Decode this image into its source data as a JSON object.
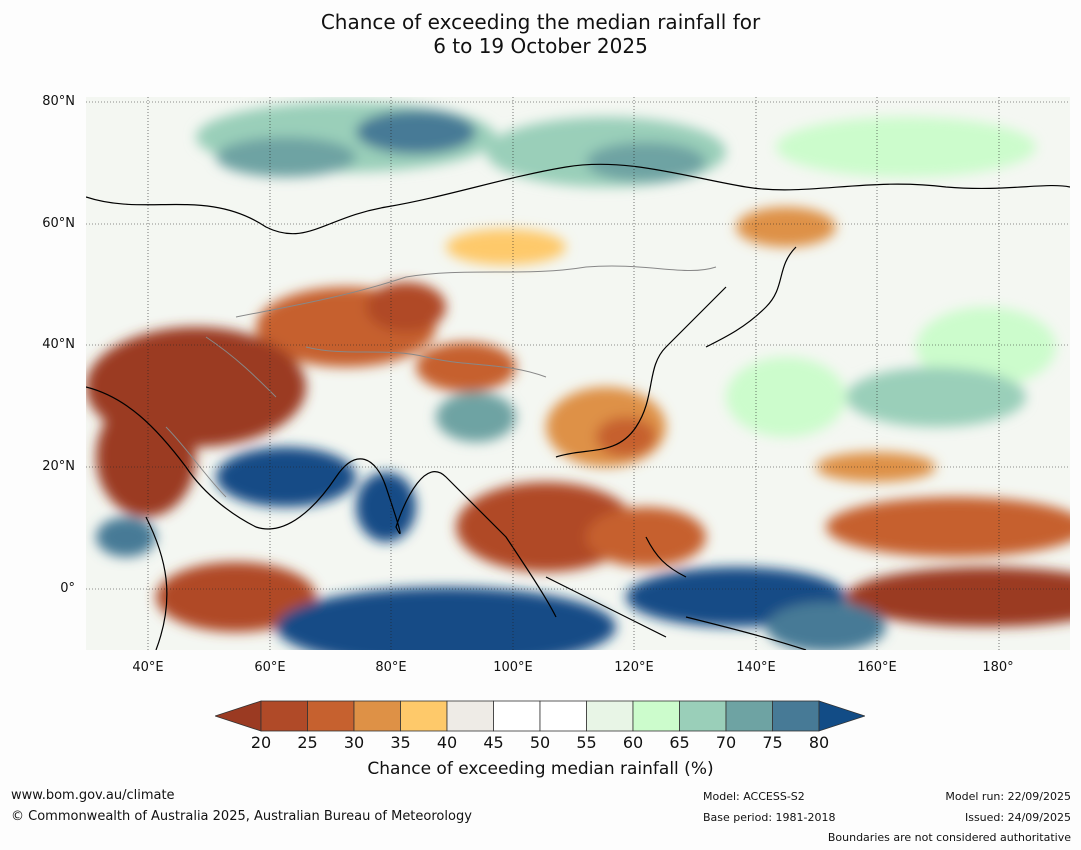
{
  "title": {
    "line1": "Chance of exceeding the median rainfall for",
    "line2": "6 to 19 October 2025"
  },
  "map": {
    "lat_labels": [
      "80°N",
      "60°N",
      "40°N",
      "20°N",
      "0°"
    ],
    "lon_labels": [
      "40°E",
      "60°E",
      "80°E",
      "100°E",
      "120°E",
      "140°E",
      "160°E",
      "180°"
    ]
  },
  "colorbar": {
    "ticks": [
      "20",
      "25",
      "30",
      "35",
      "40",
      "45",
      "50",
      "55",
      "60",
      "65",
      "70",
      "75",
      "80"
    ],
    "colors": [
      "#9b3a22",
      "#b04a28",
      "#c6612f",
      "#de9146",
      "#fec96a",
      "#eeebe6",
      "#ffffff",
      "#ffffff",
      "#e8f5e6",
      "#ccfccc",
      "#9acfb9",
      "#6ea3a3",
      "#477a96",
      "#124c86"
    ],
    "label": "Chance of exceeding median rainfall (%)"
  },
  "footer": {
    "url": "www.bom.gov.au/climate",
    "copyright": "© Commonwealth of Australia 2025, Australian Bureau of Meteorology",
    "model": "Model: ACCESS-S2",
    "base_period": "Base period: 1981-2018",
    "model_run": "Model run: 22/09/2025",
    "issued": "Issued: 24/09/2025",
    "disclaimer": "Boundaries are not considered authoritative"
  }
}
